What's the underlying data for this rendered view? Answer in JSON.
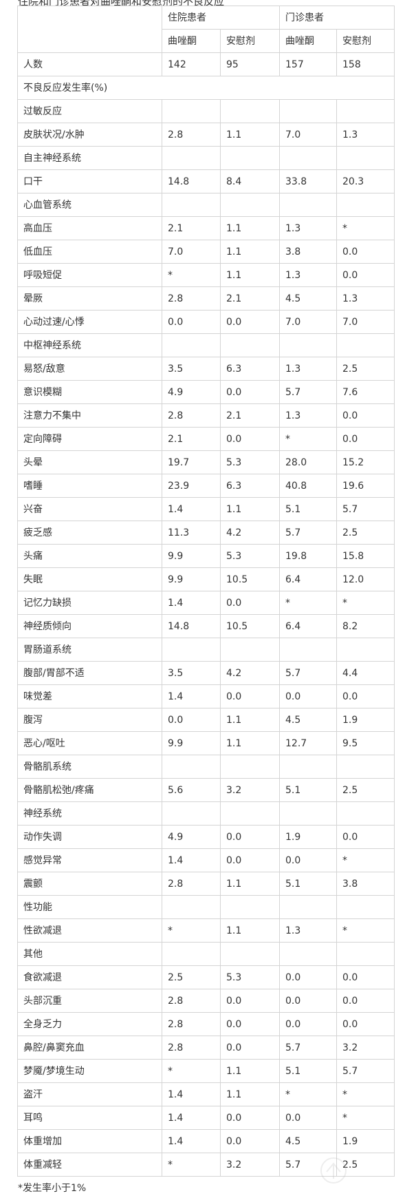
{
  "caption": "住院和门诊患者对曲唑酮和安慰剂的不良反应",
  "header": {
    "group_inpatient": "住院患者",
    "group_outpatient": "门诊患者",
    "sub": [
      "曲唑酮",
      "安慰剂",
      "曲唑酮",
      "安慰剂"
    ]
  },
  "rows": [
    {
      "label": "人数",
      "values": [
        "142",
        "95",
        "157",
        "158"
      ]
    },
    {
      "label": "不良反应发生率(%)",
      "section": true
    },
    {
      "label": "过敏反应",
      "values": [
        "",
        "",
        "",
        ""
      ]
    },
    {
      "label": "皮肤状况/水肿",
      "values": [
        "2.8",
        "1.1",
        "7.0",
        "1.3"
      ]
    },
    {
      "label": "自主神经系统",
      "values": [
        "",
        "",
        "",
        ""
      ]
    },
    {
      "label": "口干",
      "values": [
        "14.8",
        "8.4",
        "33.8",
        "20.3"
      ]
    },
    {
      "label": "心血管系统",
      "values": [
        "",
        "",
        "",
        ""
      ]
    },
    {
      "label": "高血压",
      "values": [
        "2.1",
        "1.1",
        "1.3",
        "*"
      ]
    },
    {
      "label": "低血压",
      "values": [
        "7.0",
        "1.1",
        "3.8",
        "0.0"
      ]
    },
    {
      "label": "呼吸短促",
      "values": [
        "*",
        "1.1",
        "1.3",
        "0.0"
      ]
    },
    {
      "label": "晕厥",
      "values": [
        "2.8",
        "2.1",
        "4.5",
        "1.3"
      ]
    },
    {
      "label": "心动过速/心悸",
      "values": [
        "0.0",
        "0.0",
        "7.0",
        "7.0"
      ]
    },
    {
      "label": "中枢神经系统",
      "values": [
        "",
        "",
        "",
        ""
      ]
    },
    {
      "label": "易怒/敌意",
      "values": [
        "3.5",
        "6.3",
        "1.3",
        "2.5"
      ]
    },
    {
      "label": "意识模糊",
      "values": [
        "4.9",
        "0.0",
        "5.7",
        "7.6"
      ]
    },
    {
      "label": "注意力不集中",
      "values": [
        "2.8",
        "2.1",
        "1.3",
        "0.0"
      ]
    },
    {
      "label": "定向障碍",
      "values": [
        "2.1",
        "0.0",
        "*",
        "0.0"
      ]
    },
    {
      "label": "头晕",
      "values": [
        "19.7",
        "5.3",
        "28.0",
        "15.2"
      ]
    },
    {
      "label": "嗜睡",
      "values": [
        "23.9",
        "6.3",
        "40.8",
        "19.6"
      ]
    },
    {
      "label": "兴奋",
      "values": [
        "1.4",
        "1.1",
        "5.1",
        "5.7"
      ]
    },
    {
      "label": "疲乏感",
      "values": [
        "11.3",
        "4.2",
        "5.7",
        "2.5"
      ]
    },
    {
      "label": "头痛",
      "values": [
        "9.9",
        "5.3",
        "19.8",
        "15.8"
      ]
    },
    {
      "label": "失眠",
      "values": [
        "9.9",
        "10.5",
        "6.4",
        "12.0"
      ]
    },
    {
      "label": "记忆力缺损",
      "values": [
        "1.4",
        "0.0",
        "*",
        "*"
      ]
    },
    {
      "label": "神经质倾向",
      "values": [
        "14.8",
        "10.5",
        "6.4",
        "8.2"
      ]
    },
    {
      "label": "胃肠道系统",
      "values": [
        "",
        "",
        "",
        ""
      ]
    },
    {
      "label": "腹部/胃部不适",
      "values": [
        "3.5",
        "4.2",
        "5.7",
        "4.4"
      ]
    },
    {
      "label": "味觉差",
      "values": [
        "1.4",
        "0.0",
        "0.0",
        "0.0"
      ]
    },
    {
      "label": "腹泻",
      "values": [
        "0.0",
        "1.1",
        "4.5",
        "1.9"
      ]
    },
    {
      "label": "恶心/呕吐",
      "values": [
        "9.9",
        "1.1",
        "12.7",
        "9.5"
      ]
    },
    {
      "label": "骨骼肌系统",
      "values": [
        "",
        "",
        "",
        ""
      ]
    },
    {
      "label": "骨骼肌松弛/疼痛",
      "values": [
        "5.6",
        "3.2",
        "5.1",
        "2.5"
      ]
    },
    {
      "label": "神经系统",
      "values": [
        "",
        "",
        "",
        ""
      ]
    },
    {
      "label": "动作失调",
      "values": [
        "4.9",
        "0.0",
        "1.9",
        "0.0"
      ]
    },
    {
      "label": "感觉异常",
      "values": [
        "1.4",
        "0.0",
        "0.0",
        "*"
      ]
    },
    {
      "label": "震颤",
      "values": [
        "2.8",
        "1.1",
        "5.1",
        "3.8"
      ]
    },
    {
      "label": "性功能",
      "values": [
        "",
        "",
        "",
        ""
      ]
    },
    {
      "label": "性欲减退",
      "values": [
        "*",
        "1.1",
        "1.3",
        "*"
      ]
    },
    {
      "label": "其他",
      "values": [
        "",
        "",
        "",
        ""
      ]
    },
    {
      "label": "食欲减退",
      "values": [
        "2.5",
        "5.3",
        "0.0",
        "0.0"
      ]
    },
    {
      "label": "头部沉重",
      "values": [
        "2.8",
        "0.0",
        "0.0",
        "0.0"
      ]
    },
    {
      "label": "全身乏力",
      "values": [
        "2.8",
        "0.0",
        "0.0",
        "0.0"
      ]
    },
    {
      "label": "鼻腔/鼻窦充血",
      "values": [
        "2.8",
        "0.0",
        "5.7",
        "3.2"
      ]
    },
    {
      "label": "梦魇/梦境生动",
      "values": [
        "*",
        "1.1",
        "5.1",
        "5.7"
      ]
    },
    {
      "label": "盗汗",
      "values": [
        "1.4",
        "1.1",
        "*",
        "*"
      ]
    },
    {
      "label": "耳鸣",
      "values": [
        "1.4",
        "0.0",
        "0.0",
        "*"
      ]
    },
    {
      "label": "体重增加",
      "values": [
        "1.4",
        "0.0",
        "4.5",
        "1.9"
      ]
    },
    {
      "label": "体重减轻",
      "values": [
        "*",
        "3.2",
        "5.7",
        "2.5"
      ]
    }
  ],
  "footnote": "*发生率小于1%"
}
